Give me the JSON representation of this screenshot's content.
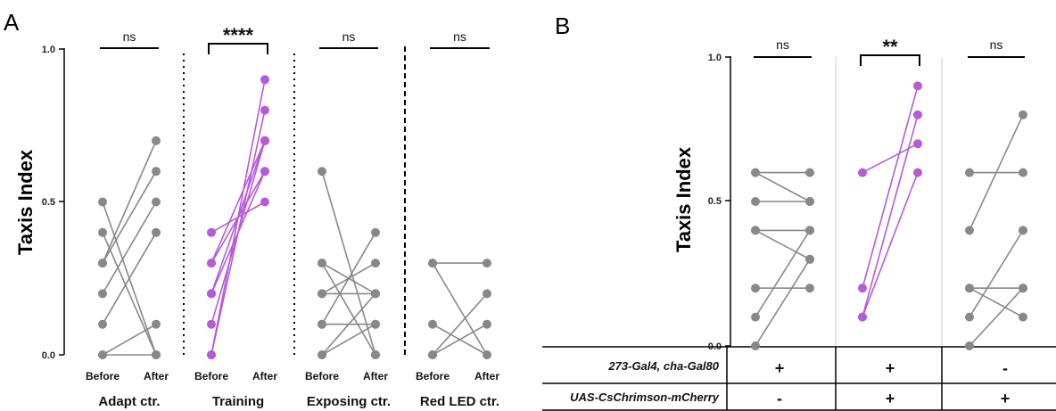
{
  "panels": {
    "a": {
      "letter": "A"
    },
    "b": {
      "letter": "B"
    }
  },
  "colors": {
    "control": "#888888",
    "experimental": "#b65ad8"
  },
  "chart_data": [
    {
      "type": "scatter",
      "style": "paired before-after lines",
      "ylabel": "Taxis Index",
      "ylim": [
        0,
        1
      ],
      "yticks": [
        "0.0",
        "0.5",
        "1.0"
      ],
      "xtick_labels": [
        "Before",
        "After"
      ],
      "groups": [
        {
          "label": "Adapt ctr.",
          "sig": "ns",
          "color_key": "control",
          "pairs": [
            [
              0.5,
              0.0
            ],
            [
              0.4,
              0.0
            ],
            [
              0.3,
              0.7
            ],
            [
              0.3,
              0.6
            ],
            [
              0.2,
              0.5
            ],
            [
              0.1,
              0.4
            ],
            [
              0.0,
              0.1
            ],
            [
              0.0,
              0.0
            ]
          ]
        },
        {
          "label": "Training",
          "sig": "****",
          "color_key": "experimental",
          "pairs": [
            [
              0.4,
              0.5
            ],
            [
              0.3,
              0.6
            ],
            [
              0.3,
              0.7
            ],
            [
              0.2,
              0.7
            ],
            [
              0.2,
              0.6
            ],
            [
              0.1,
              0.7
            ],
            [
              0.0,
              0.8
            ],
            [
              0.0,
              0.9
            ]
          ]
        },
        {
          "label": "Exposing ctr.",
          "sig": "ns",
          "color_key": "control",
          "pairs": [
            [
              0.6,
              0.0
            ],
            [
              0.3,
              0.2
            ],
            [
              0.3,
              0.0
            ],
            [
              0.2,
              0.3
            ],
            [
              0.2,
              0.2
            ],
            [
              0.1,
              0.4
            ],
            [
              0.1,
              0.1
            ],
            [
              0.0,
              0.1
            ],
            [
              0.0,
              0.2
            ]
          ]
        },
        {
          "label": "Red LED ctr.",
          "sig": "ns",
          "color_key": "control",
          "pairs": [
            [
              0.3,
              0.3
            ],
            [
              0.1,
              0.0
            ],
            [
              0.0,
              0.2
            ],
            [
              0.0,
              0.1
            ],
            [
              0.3,
              0.0
            ]
          ]
        }
      ],
      "separators": [
        "dotted",
        "dotted",
        "dashed"
      ]
    },
    {
      "type": "scatter",
      "style": "paired before-after lines",
      "ylabel": "Taxis Index",
      "ylim": [
        0,
        1
      ],
      "yticks": [
        "0.0",
        "0.5",
        "1.0"
      ],
      "groups": [
        {
          "sig": "ns",
          "color_key": "control",
          "pairs": [
            [
              0.6,
              0.6
            ],
            [
              0.5,
              0.5
            ],
            [
              0.4,
              0.3
            ],
            [
              0.4,
              0.4
            ],
            [
              0.2,
              0.2
            ],
            [
              0.1,
              0.4
            ],
            [
              0.0,
              0.3
            ],
            [
              0.6,
              0.5
            ]
          ]
        },
        {
          "sig": "**",
          "color_key": "experimental",
          "pairs": [
            [
              0.6,
              0.7
            ],
            [
              0.2,
              0.9
            ],
            [
              0.1,
              0.8
            ],
            [
              0.1,
              0.6
            ]
          ]
        },
        {
          "sig": "ns",
          "color_key": "control",
          "pairs": [
            [
              0.6,
              0.6
            ],
            [
              0.4,
              0.8
            ],
            [
              0.2,
              0.2
            ],
            [
              0.2,
              0.1
            ],
            [
              0.1,
              0.4
            ],
            [
              0.0,
              0.2
            ]
          ]
        }
      ],
      "genotype_table": {
        "rows": [
          {
            "label": "273-Gal4, cha-Gal80",
            "values": [
              "+",
              "+",
              "-"
            ]
          },
          {
            "label": "UAS-CsChrimson-mCherry",
            "values": [
              "-",
              "+",
              "+"
            ]
          }
        ]
      }
    }
  ]
}
